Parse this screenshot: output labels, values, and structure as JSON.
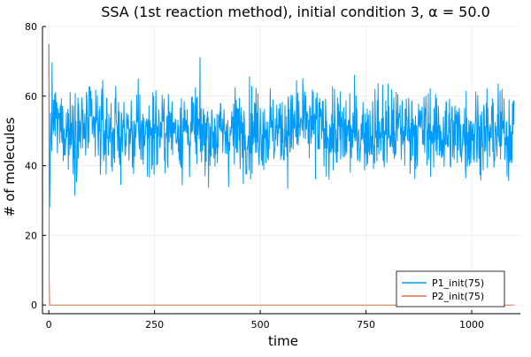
{
  "chart_data": {
    "type": "line",
    "title": "SSA (1st reaction method), initial condition 3, α = 50.0",
    "xlabel": "time",
    "ylabel": "# of molecules",
    "xlim": [
      -15,
      1115
    ],
    "ylim": [
      -2.5,
      80
    ],
    "xticks": [
      0,
      250,
      500,
      750,
      1000
    ],
    "yticks": [
      0,
      20,
      40,
      60,
      80
    ],
    "grid": true,
    "legend_position": "bottom-right",
    "series": [
      {
        "name": "P1_init(75)",
        "color": "#009af9",
        "style": "noisy",
        "points": [
          [
            0,
            75
          ],
          [
            2,
            28
          ],
          [
            4,
            50
          ],
          [
            10,
            54
          ],
          [
            20,
            52
          ],
          [
            50,
            50
          ],
          [
            100,
            51
          ],
          [
            150,
            50
          ],
          [
            200,
            49
          ],
          [
            250,
            50
          ],
          [
            300,
            51
          ],
          [
            350,
            50
          ],
          [
            400,
            49
          ],
          [
            450,
            50
          ],
          [
            500,
            51
          ],
          [
            550,
            50
          ],
          [
            600,
            52
          ],
          [
            650,
            50
          ],
          [
            700,
            49
          ],
          [
            750,
            50
          ],
          [
            800,
            50
          ],
          [
            850,
            51
          ],
          [
            900,
            50
          ],
          [
            950,
            49
          ],
          [
            1000,
            50
          ],
          [
            1050,
            49
          ],
          [
            1100,
            50
          ]
        ],
        "noise_sd": 8.5,
        "clip": [
          24,
          78
        ],
        "n_steps": 1200
      },
      {
        "name": "P2_init(75)",
        "color": "#e26f46",
        "points": [
          [
            0,
            75
          ],
          [
            0.5,
            40
          ],
          [
            1,
            8
          ],
          [
            2,
            0
          ],
          [
            1100,
            0
          ]
        ]
      }
    ]
  }
}
